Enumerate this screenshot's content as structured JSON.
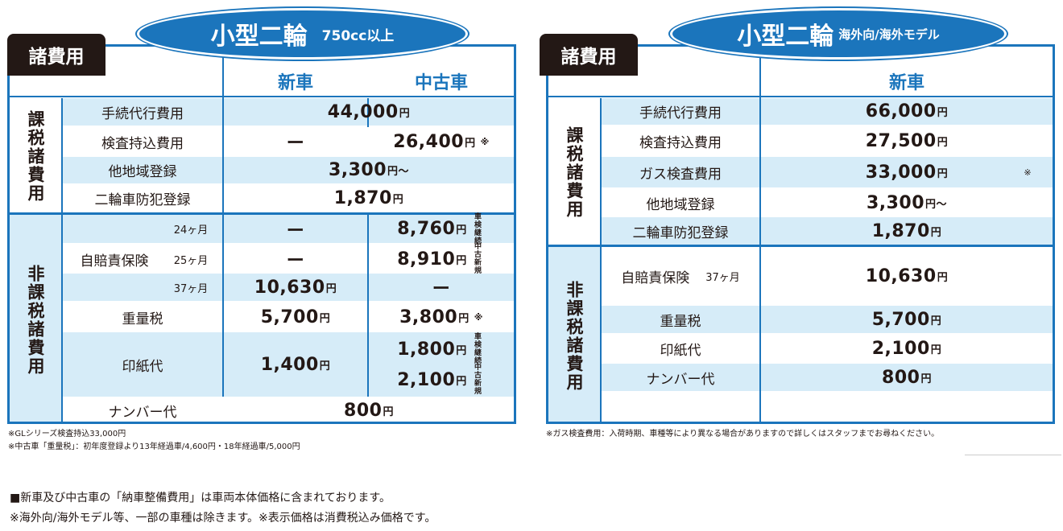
{
  "left": {
    "tab": "諸費用",
    "title_main": "小型二輪",
    "title_sub": "750cc以上",
    "col_new": "新車",
    "col_used": "中古車",
    "group_taxable": "課税諸費用",
    "group_nontaxable": "非課税諸費用",
    "rows": {
      "proc_label": "手続代行費用",
      "proc_value": "44,000",
      "insp_label": "検査持込費用",
      "insp_new": "ー",
      "insp_used": "26,400",
      "reg_label": "他地域登録",
      "reg_value": "3,300",
      "reg_suffix": "円〜",
      "theft_label": "二輪車防犯登録",
      "theft_value": "1,870",
      "ins_label": "自賠責保険",
      "ins_24": "24ヶ月",
      "ins_24_new": "ー",
      "ins_24_used": "8,760",
      "ins_24_note": "車検継続",
      "ins_25": "25ヶ月",
      "ins_25_new": "ー",
      "ins_25_used": "8,910",
      "ins_25_note": "中古新規",
      "ins_37": "37ヶ月",
      "ins_37_new": "10,630",
      "ins_37_used": "ー",
      "weight_label": "重量税",
      "weight_new": "5,700",
      "weight_used": "3,800",
      "stamp_label": "印紙代",
      "stamp_new": "1,400",
      "stamp_used1": "1,800",
      "stamp_used1_note": "車検継続",
      "stamp_used2": "2,100",
      "stamp_used2_note": "中古新規",
      "plate_label": "ナンバー代",
      "plate_value": "800"
    },
    "footnote1": "※GLシリーズ検査持込33,000円",
    "footnote2": "※中古車「重量税」：初年度登録より13年経過車/4,600円・18年経過車/5,000円"
  },
  "right": {
    "tab": "諸費用",
    "title_main": "小型二輪",
    "title_sub": "海外向/海外モデル",
    "col_new": "新車",
    "group_taxable": "課税諸費用",
    "group_nontaxable": "非課税諸費用",
    "rows": {
      "proc_label": "手続代行費用",
      "proc_value": "66,000",
      "insp_label": "検査持込費用",
      "insp_value": "27,500",
      "gas_label": "ガス検査費用",
      "gas_value": "33,000",
      "reg_label": "他地域登録",
      "reg_value": "3,300",
      "reg_suffix": "円〜",
      "theft_label": "二輪車防犯登録",
      "theft_value": "1,870",
      "ins_label": "自賠責保険",
      "ins_37": "37ヶ月",
      "ins_value": "10,630",
      "weight_label": "重量税",
      "weight_value": "5,700",
      "stamp_label": "印紙代",
      "stamp_value": "2,100",
      "plate_label": "ナンバー代",
      "plate_value": "800"
    },
    "footnote": "※ガス検査費用：入荷時期、車種等により異なる場合がありますので詳しくはスタッフまでお尋ねください。"
  },
  "common": {
    "yen": "円",
    "star": "※",
    "bottom1": "■新車及び中古車の「納車整備費用」は車両本体価格に含まれております。",
    "bottom2": "※海外向/海外モデル等、一部の車種は除きます。※表示価格は消費税込み価格です。"
  },
  "colors": {
    "accent": "#1b75bc",
    "band": "#d6ecf8",
    "tab": "#231815"
  }
}
